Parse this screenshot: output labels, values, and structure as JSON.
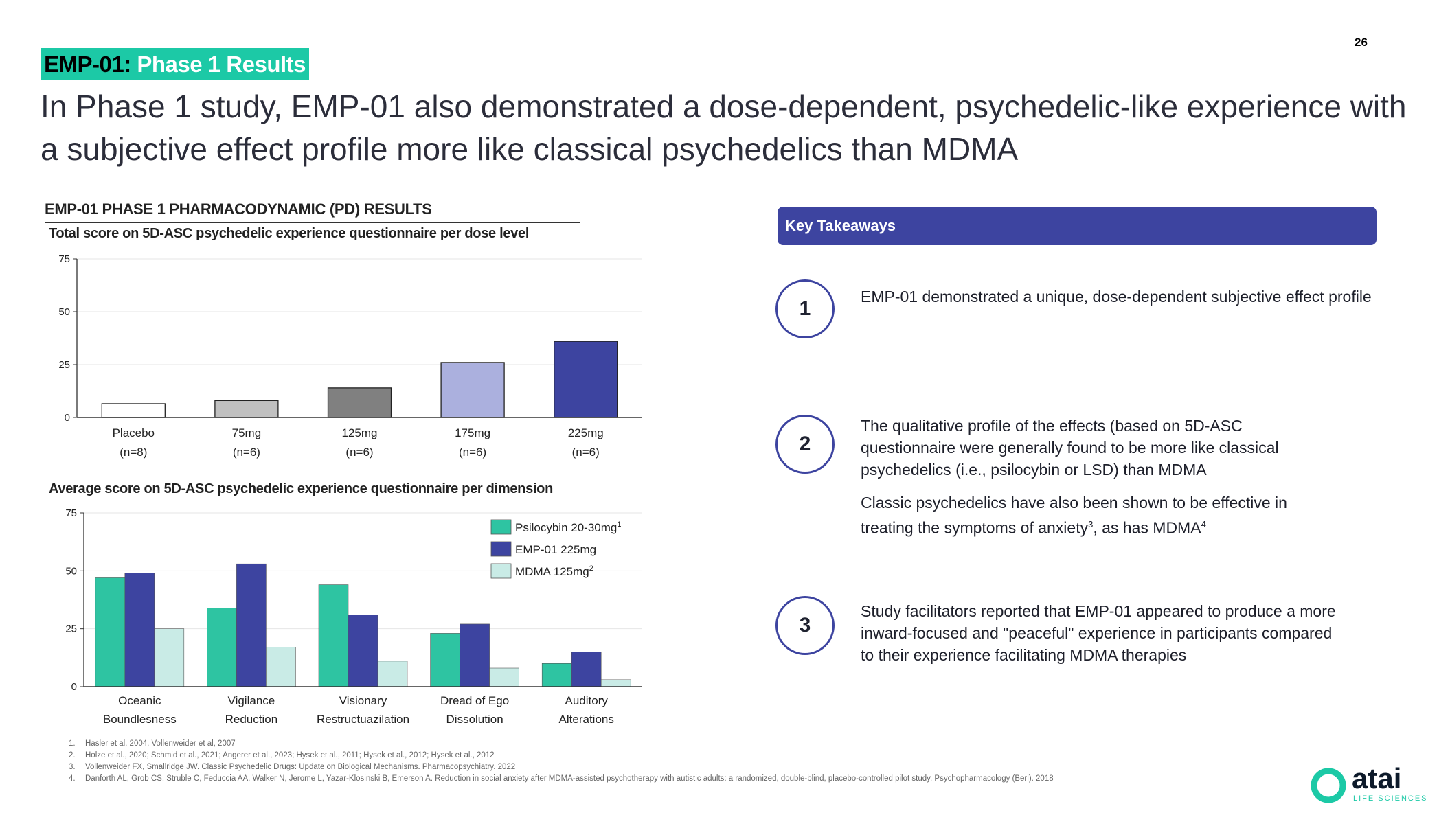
{
  "header": {
    "tag_prefix": "EMP-01:",
    "tag_suffix": " Phase 1 Results",
    "page_number": "26",
    "title": "In Phase 1 study, EMP-01 also demonstrated a dose-dependent, psychedelic-like experience with a subjective effect profile more like classical psychedelics than MDMA"
  },
  "section_title": "EMP-01 PHASE 1 PHARMACODYNAMIC (PD) RESULTS",
  "chart_data": [
    {
      "type": "bar",
      "title": "Total score on 5D-ASC psychedelic experience questionnaire per dose level",
      "categories": [
        [
          "Placebo",
          "(n=8)"
        ],
        [
          "75mg",
          "(n=6)"
        ],
        [
          "125mg",
          "(n=6)"
        ],
        [
          "175mg",
          "(n=6)"
        ],
        [
          "225mg",
          "(n=6)"
        ]
      ],
      "values": [
        6.5,
        8,
        14,
        26,
        36
      ],
      "colors": [
        "#ffffff",
        "#c0c0c0",
        "#808080",
        "#abb0de",
        "#3d44a0"
      ],
      "ylim": [
        0,
        75
      ],
      "yticks": [
        0,
        25,
        50,
        75
      ],
      "grid": true,
      "xlabel": "",
      "ylabel": ""
    },
    {
      "type": "bar",
      "title": "Average score on 5D-ASC psychedelic experience questionnaire per dimension",
      "categories": [
        [
          "Oceanic",
          "Boundlesness"
        ],
        [
          "Vigilance",
          "Reduction"
        ],
        [
          "Visionary",
          "Restructuazilation"
        ],
        [
          "Dread of Ego",
          "Dissolution"
        ],
        [
          "Auditory",
          "Alterations"
        ]
      ],
      "series": [
        {
          "name": "Psilocybin 20-30mg",
          "sup": "1",
          "color": "#2ec4a2",
          "values": [
            47,
            34,
            44,
            23,
            10
          ]
        },
        {
          "name": "EMP-01 225mg",
          "sup": "",
          "color": "#3d44a0",
          "values": [
            49,
            53,
            31,
            27,
            15
          ]
        },
        {
          "name": "MDMA 125mg",
          "sup": "2",
          "color": "#c9ebe6",
          "values": [
            25,
            17,
            11,
            8,
            3
          ]
        }
      ],
      "ylim": [
        0,
        75
      ],
      "yticks": [
        0,
        25,
        50,
        75
      ],
      "grid": true,
      "legend": "top-right",
      "xlabel": "",
      "ylabel": ""
    }
  ],
  "takeaways": {
    "title": "Key Takeaways",
    "items": [
      {
        "num": "1",
        "p1": "EMP-01 demonstrated a unique, dose-dependent subjective effect profile"
      },
      {
        "num": "2",
        "p1": "The qualitative profile of the effects (based on 5D-ASC questionnaire were generally found to be more like classical psychedelics (i.e., psilocybin or LSD) than MDMA",
        "p2a": "Classic psychedelics have also been shown to be effective in treating the symptoms of anxiety",
        "p2s1": "3",
        "p2b": ", as has MDMA",
        "p2s2": "4"
      },
      {
        "num": "3",
        "p1": "Study facilitators reported that EMP-01 appeared to produce a more inward-focused and \"peaceful\" experience in participants compared to their experience facilitating MDMA therapies"
      }
    ]
  },
  "footnotes": [
    {
      "n": "1.",
      "text": "Hasler et al, 2004, Vollenweider et al, 2007"
    },
    {
      "n": "2.",
      "text": "Holze et al., 2020; Schmid et al., 2021; Angerer et al., 2023; Hysek et al., 2011; Hysek et al., 2012; Hysek et al., 2012"
    },
    {
      "n": "3.",
      "text": "Vollenweider FX, Smallridge JW. Classic Psychedelic Drugs: Update on Biological Mechanisms. Pharmacopsychiatry. 2022"
    },
    {
      "n": "4.",
      "text": "Danforth AL, Grob CS, Struble C, Feduccia AA, Walker N, Jerome L, Yazar-Klosinski B, Emerson A. Reduction in social anxiety after MDMA-assisted psychotherapy with autistic adults: a randomized, double-blind, placebo-controlled pilot study. Psychopharmacology (Berl). 2018"
    }
  ],
  "logo": {
    "name": "atai",
    "tagline": "LIFE SCIENCES"
  }
}
